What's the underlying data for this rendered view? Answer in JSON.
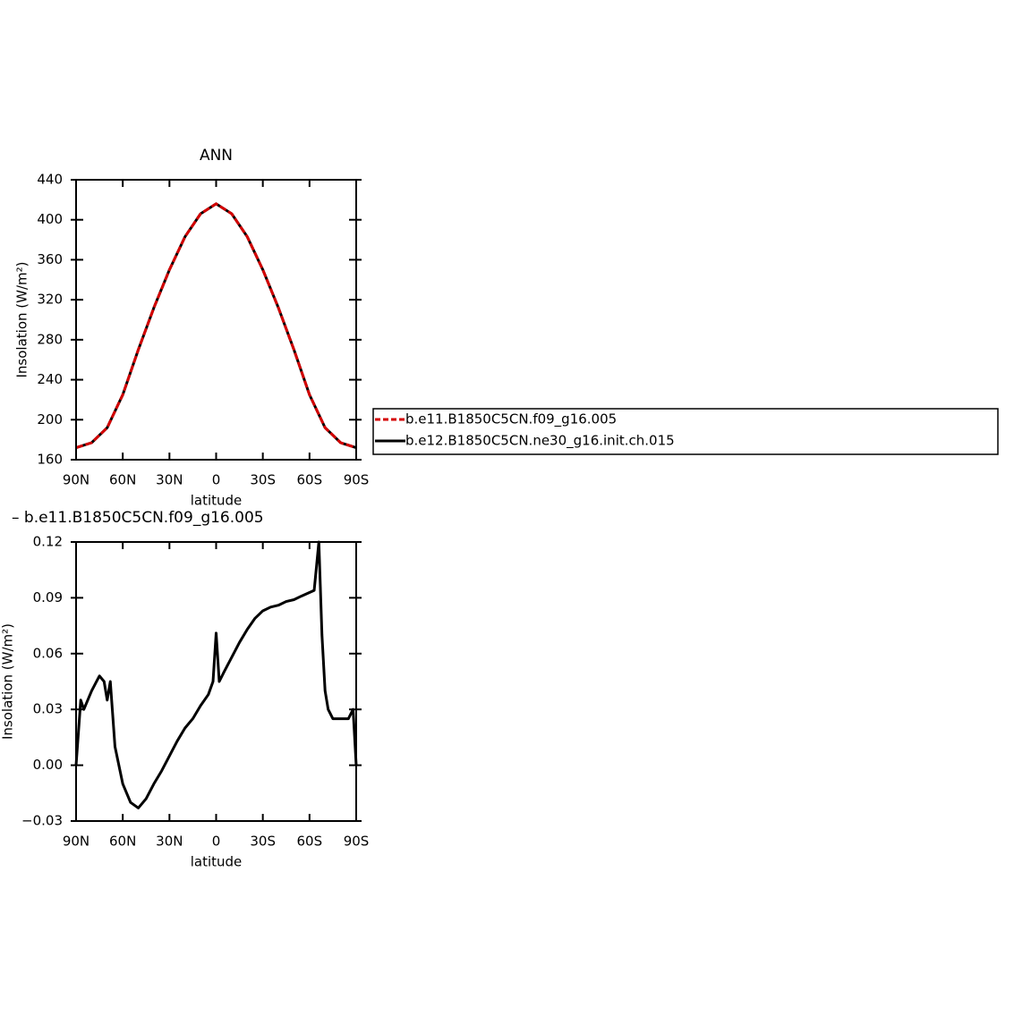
{
  "chart_data": [
    {
      "type": "line",
      "title": "ANN",
      "xlabel": "latitude",
      "ylabel": "Insolation (W/m²)",
      "x": [
        90,
        80,
        70,
        60,
        50,
        40,
        30,
        20,
        10,
        0,
        -10,
        -20,
        -30,
        -40,
        -50,
        -60,
        -70,
        -80,
        -90
      ],
      "xlim": [
        90,
        -90
      ],
      "xticks": [
        {
          "value": 90,
          "label": "90N"
        },
        {
          "value": 60,
          "label": "60N"
        },
        {
          "value": 30,
          "label": "30N"
        },
        0,
        {
          "value": -30,
          "label": "30S"
        },
        {
          "value": -60,
          "label": "60S"
        },
        {
          "value": -90,
          "label": "90S"
        }
      ],
      "ylim": [
        160,
        440
      ],
      "yticks": [
        160,
        200,
        240,
        280,
        320,
        360,
        400,
        440
      ],
      "legend": "right",
      "series": [
        {
          "name": "b.e11.B1850C5CN.f09_g16.005",
          "color": "#d40000",
          "dash": true,
          "values": [
            172,
            177,
            192,
            225,
            270,
            312,
            350,
            383,
            406,
            416,
            406,
            383,
            350,
            312,
            270,
            225,
            192,
            177,
            172
          ]
        },
        {
          "name": "b.e12.B1850C5CN.ne30_g16.init.ch.015",
          "color": "#000000",
          "dash": false,
          "values": [
            172,
            177,
            192,
            225,
            270,
            312,
            350,
            383,
            406,
            416,
            406,
            383,
            350,
            312,
            270,
            225,
            192,
            177,
            172
          ]
        }
      ]
    },
    {
      "type": "line",
      "title": "– b.e11.B1850C5CN.f09_g16.005",
      "xlabel": "latitude",
      "ylabel": "Insolation (W/m²)",
      "x": [
        90,
        87,
        85,
        80,
        75,
        72,
        70,
        68,
        65,
        60,
        55,
        50,
        45,
        40,
        35,
        30,
        25,
        20,
        15,
        10,
        5,
        2,
        0,
        -2,
        -5,
        -10,
        -15,
        -20,
        -25,
        -30,
        -35,
        -40,
        -45,
        -50,
        -55,
        -63,
        -66,
        -68,
        -70,
        -72,
        -75,
        -80,
        -85,
        -88,
        -90
      ],
      "xlim": [
        90,
        -90
      ],
      "xticks": [
        {
          "value": 90,
          "label": "90N"
        },
        {
          "value": 60,
          "label": "60N"
        },
        {
          "value": 30,
          "label": "30N"
        },
        0,
        {
          "value": -30,
          "label": "30S"
        },
        {
          "value": -60,
          "label": "60S"
        },
        {
          "value": -90,
          "label": "90S"
        }
      ],
      "ylim": [
        -0.03,
        0.12
      ],
      "yticks": [
        {
          "value": -0.03,
          "label": "−0.03"
        },
        {
          "value": 0,
          "label": "0.00"
        },
        {
          "value": 0.03,
          "label": "0.03"
        },
        {
          "value": 0.06,
          "label": "0.06"
        },
        {
          "value": 0.09,
          "label": "0.09"
        },
        {
          "value": 0.12,
          "label": "0.12"
        }
      ],
      "series": [
        {
          "color": "#000000",
          "values": [
            0.0,
            0.035,
            0.03,
            0.04,
            0.048,
            0.045,
            0.035,
            0.045,
            0.01,
            -0.01,
            -0.02,
            -0.023,
            -0.018,
            -0.01,
            -0.003,
            0.005,
            0.013,
            0.02,
            0.025,
            0.032,
            0.038,
            0.045,
            0.071,
            0.045,
            0.05,
            0.058,
            0.066,
            0.073,
            0.079,
            0.083,
            0.085,
            0.086,
            0.088,
            0.089,
            0.091,
            0.094,
            0.12,
            0.07,
            0.04,
            0.03,
            0.025,
            0.025,
            0.025,
            0.03,
            0.0
          ]
        }
      ]
    }
  ]
}
